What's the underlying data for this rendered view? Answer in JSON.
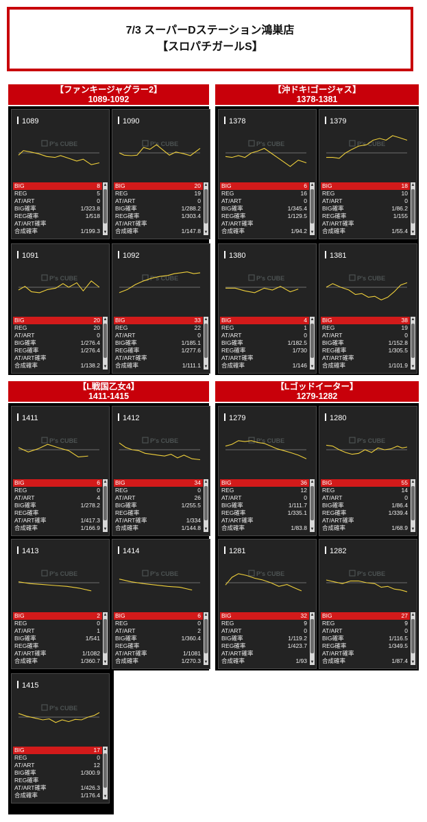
{
  "header": {
    "line1": "7/3 スーパーDステーション鴻巣店",
    "line2": "【スロパチガールS】"
  },
  "labels": {
    "big": "BIG",
    "reg": "REG",
    "atart": "AT/ART",
    "big_rate": "BIG確率",
    "reg_rate": "REG確率",
    "atart_rate": "AT/ART確率",
    "total_rate": "合成確率"
  },
  "logo_text": "P's CUBE",
  "colors": {
    "accent": "#c8000a",
    "graph_line": "#f2d23b",
    "panel_bg": "#232323"
  },
  "groups": [
    {
      "name": "【ファンキージャグラー2】",
      "range": "1089-1092",
      "units": [
        {
          "num": "1089",
          "big": "8",
          "reg": "5",
          "atart": "0",
          "big_rate": "1/323.8",
          "reg_rate": "1/518",
          "atart_rate": "",
          "total_rate": "1/199.3",
          "graph": [
            [
              0,
              0.55
            ],
            [
              0.06,
              0.45
            ],
            [
              0.15,
              0.48
            ],
            [
              0.25,
              0.52
            ],
            [
              0.35,
              0.58
            ],
            [
              0.45,
              0.6
            ],
            [
              0.52,
              0.56
            ],
            [
              0.62,
              0.62
            ],
            [
              0.72,
              0.68
            ],
            [
              0.8,
              0.64
            ],
            [
              0.9,
              0.76
            ],
            [
              1,
              0.72
            ]
          ]
        },
        {
          "num": "1090",
          "big": "20",
          "reg": "19",
          "atart": "0",
          "big_rate": "1/288.2",
          "reg_rate": "1/303.4",
          "atart_rate": "",
          "total_rate": "1/147.8",
          "graph": [
            [
              0,
              0.5
            ],
            [
              0.06,
              0.55
            ],
            [
              0.15,
              0.56
            ],
            [
              0.22,
              0.55
            ],
            [
              0.3,
              0.38
            ],
            [
              0.38,
              0.42
            ],
            [
              0.46,
              0.32
            ],
            [
              0.55,
              0.45
            ],
            [
              0.62,
              0.55
            ],
            [
              0.7,
              0.48
            ],
            [
              0.8,
              0.52
            ],
            [
              0.88,
              0.56
            ],
            [
              1,
              0.4
            ]
          ]
        },
        {
          "num": "1091",
          "big": "20",
          "reg": "20",
          "atart": "0",
          "big_rate": "1/276.4",
          "reg_rate": "1/276.4",
          "atart_rate": "",
          "total_rate": "1/138.2",
          "graph": [
            [
              0,
              0.56
            ],
            [
              0.08,
              0.48
            ],
            [
              0.16,
              0.6
            ],
            [
              0.26,
              0.62
            ],
            [
              0.36,
              0.55
            ],
            [
              0.46,
              0.52
            ],
            [
              0.55,
              0.42
            ],
            [
              0.62,
              0.5
            ],
            [
              0.72,
              0.4
            ],
            [
              0.8,
              0.58
            ],
            [
              0.9,
              0.36
            ],
            [
              1,
              0.5
            ]
          ]
        },
        {
          "num": "1092",
          "big": "33",
          "reg": "22",
          "atart": "0",
          "big_rate": "1/185.1",
          "reg_rate": "1/277.6",
          "atart_rate": "",
          "total_rate": "1/111.1",
          "graph": [
            [
              0,
              0.62
            ],
            [
              0.1,
              0.55
            ],
            [
              0.2,
              0.44
            ],
            [
              0.3,
              0.36
            ],
            [
              0.4,
              0.3
            ],
            [
              0.5,
              0.26
            ],
            [
              0.6,
              0.24
            ],
            [
              0.68,
              0.2
            ],
            [
              0.76,
              0.18
            ],
            [
              0.84,
              0.16
            ],
            [
              0.92,
              0.2
            ],
            [
              1,
              0.18
            ]
          ]
        }
      ]
    },
    {
      "name": "【沖ドキ!ゴージャス】",
      "range": "1378-1381",
      "units": [
        {
          "num": "1378",
          "big": "6",
          "reg": "16",
          "atart": "0",
          "big_rate": "1/345.4",
          "reg_rate": "1/129.5",
          "atart_rate": "",
          "total_rate": "1/94.2",
          "graph": [
            [
              0,
              0.58
            ],
            [
              0.08,
              0.6
            ],
            [
              0.16,
              0.56
            ],
            [
              0.24,
              0.6
            ],
            [
              0.32,
              0.5
            ],
            [
              0.4,
              0.46
            ],
            [
              0.48,
              0.4
            ],
            [
              0.56,
              0.5
            ],
            [
              0.64,
              0.6
            ],
            [
              0.72,
              0.7
            ],
            [
              0.8,
              0.8
            ],
            [
              0.9,
              0.66
            ],
            [
              1,
              0.72
            ]
          ]
        },
        {
          "num": "1379",
          "big": "18",
          "reg": "10",
          "atart": "0",
          "big_rate": "1/86.2",
          "reg_rate": "1/155",
          "atart_rate": "",
          "total_rate": "1/55.4",
          "graph": [
            [
              0,
              0.6
            ],
            [
              0.08,
              0.6
            ],
            [
              0.16,
              0.62
            ],
            [
              0.24,
              0.5
            ],
            [
              0.32,
              0.42
            ],
            [
              0.4,
              0.35
            ],
            [
              0.5,
              0.32
            ],
            [
              0.58,
              0.22
            ],
            [
              0.66,
              0.18
            ],
            [
              0.74,
              0.22
            ],
            [
              0.82,
              0.12
            ],
            [
              0.9,
              0.16
            ],
            [
              1,
              0.22
            ]
          ]
        },
        {
          "num": "1380",
          "big": "4",
          "reg": "1",
          "atart": "0",
          "big_rate": "1/182.5",
          "reg_rate": "1/730",
          "atart_rate": "",
          "total_rate": "1/146",
          "graph": [
            [
              0,
              0.52
            ],
            [
              0.12,
              0.52
            ],
            [
              0.24,
              0.58
            ],
            [
              0.36,
              0.62
            ],
            [
              0.48,
              0.52
            ],
            [
              0.58,
              0.56
            ],
            [
              0.68,
              0.48
            ],
            [
              0.8,
              0.6
            ],
            [
              0.9,
              0.54
            ]
          ]
        },
        {
          "num": "1381",
          "big": "38",
          "reg": "19",
          "atart": "0",
          "big_rate": "1/152.8",
          "reg_rate": "1/305.5",
          "atart_rate": "",
          "total_rate": "1/101.9",
          "graph": [
            [
              0,
              0.5
            ],
            [
              0.08,
              0.42
            ],
            [
              0.18,
              0.5
            ],
            [
              0.28,
              0.56
            ],
            [
              0.36,
              0.66
            ],
            [
              0.44,
              0.64
            ],
            [
              0.52,
              0.72
            ],
            [
              0.6,
              0.7
            ],
            [
              0.68,
              0.78
            ],
            [
              0.76,
              0.72
            ],
            [
              0.84,
              0.6
            ],
            [
              0.92,
              0.45
            ],
            [
              1,
              0.4
            ]
          ]
        }
      ]
    },
    {
      "name": "【L戦国乙女4】",
      "range": "1411-1415",
      "units": [
        {
          "num": "1411",
          "big": "6",
          "reg": "0",
          "atart": "4",
          "big_rate": "1/278.2",
          "reg_rate": "",
          "atart_rate": "1/417.3",
          "total_rate": "1/166.9",
          "graph": [
            [
              0,
              0.45
            ],
            [
              0.12,
              0.55
            ],
            [
              0.24,
              0.48
            ],
            [
              0.36,
              0.38
            ],
            [
              0.5,
              0.46
            ],
            [
              0.62,
              0.52
            ],
            [
              0.74,
              0.66
            ],
            [
              0.86,
              0.64
            ]
          ]
        },
        {
          "num": "1412",
          "big": "34",
          "reg": "0",
          "atart": "26",
          "big_rate": "1/255.5",
          "reg_rate": "",
          "atart_rate": "1/334",
          "total_rate": "1/144.8",
          "graph": [
            [
              0,
              0.35
            ],
            [
              0.08,
              0.45
            ],
            [
              0.16,
              0.5
            ],
            [
              0.24,
              0.52
            ],
            [
              0.32,
              0.58
            ],
            [
              0.4,
              0.6
            ],
            [
              0.48,
              0.62
            ],
            [
              0.56,
              0.64
            ],
            [
              0.64,
              0.6
            ],
            [
              0.72,
              0.68
            ],
            [
              0.8,
              0.62
            ],
            [
              0.9,
              0.7
            ],
            [
              1,
              0.72
            ]
          ]
        },
        {
          "num": "1413",
          "big": "2",
          "reg": "0",
          "atart": "1",
          "big_rate": "1/541",
          "reg_rate": "",
          "atart_rate": "1/1082",
          "total_rate": "1/360.7",
          "graph": [
            [
              0,
              0.48
            ],
            [
              0.15,
              0.52
            ],
            [
              0.3,
              0.54
            ],
            [
              0.45,
              0.56
            ],
            [
              0.6,
              0.58
            ],
            [
              0.75,
              0.62
            ],
            [
              0.9,
              0.68
            ]
          ]
        },
        {
          "num": "1414",
          "big": "6",
          "reg": "0",
          "atart": "2",
          "big_rate": "1/360.4",
          "reg_rate": "",
          "atart_rate": "1/1081",
          "total_rate": "1/270.3",
          "graph": [
            [
              0,
              0.42
            ],
            [
              0.15,
              0.48
            ],
            [
              0.3,
              0.52
            ],
            [
              0.45,
              0.55
            ],
            [
              0.6,
              0.58
            ],
            [
              0.75,
              0.6
            ],
            [
              0.9,
              0.66
            ]
          ]
        },
        {
          "num": "1415",
          "big": "17",
          "reg": "0",
          "atart": "12",
          "big_rate": "1/300.9",
          "reg_rate": "",
          "atart_rate": "1/426.3",
          "total_rate": "1/176.4",
          "graph": [
            [
              0,
              0.42
            ],
            [
              0.1,
              0.48
            ],
            [
              0.2,
              0.52
            ],
            [
              0.3,
              0.56
            ],
            [
              0.38,
              0.54
            ],
            [
              0.46,
              0.62
            ],
            [
              0.54,
              0.56
            ],
            [
              0.62,
              0.6
            ],
            [
              0.7,
              0.55
            ],
            [
              0.78,
              0.56
            ],
            [
              0.86,
              0.5
            ],
            [
              0.94,
              0.46
            ],
            [
              1,
              0.4
            ]
          ]
        }
      ]
    },
    {
      "name": "【Lゴッドイーター】",
      "range": "1279-1282",
      "units": [
        {
          "num": "1279",
          "big": "36",
          "reg": "12",
          "atart": "0",
          "big_rate": "1/111.7",
          "reg_rate": "1/335.1",
          "atart_rate": "",
          "total_rate": "1/83.8",
          "graph": [
            [
              0,
              0.42
            ],
            [
              0.08,
              0.38
            ],
            [
              0.16,
              0.3
            ],
            [
              0.24,
              0.32
            ],
            [
              0.32,
              0.3
            ],
            [
              0.4,
              0.34
            ],
            [
              0.48,
              0.36
            ],
            [
              0.56,
              0.42
            ],
            [
              0.64,
              0.48
            ],
            [
              0.72,
              0.52
            ],
            [
              0.8,
              0.56
            ],
            [
              0.9,
              0.62
            ],
            [
              1,
              0.7
            ]
          ]
        },
        {
          "num": "1280",
          "big": "55",
          "reg": "14",
          "atart": "0",
          "big_rate": "1/86.4",
          "reg_rate": "1/339.4",
          "atart_rate": "",
          "total_rate": "1/68.9",
          "graph": [
            [
              0,
              0.4
            ],
            [
              0.08,
              0.42
            ],
            [
              0.16,
              0.5
            ],
            [
              0.24,
              0.56
            ],
            [
              0.32,
              0.6
            ],
            [
              0.4,
              0.58
            ],
            [
              0.48,
              0.5
            ],
            [
              0.56,
              0.56
            ],
            [
              0.64,
              0.46
            ],
            [
              0.72,
              0.5
            ],
            [
              0.8,
              0.48
            ],
            [
              0.88,
              0.42
            ],
            [
              0.94,
              0.46
            ],
            [
              1,
              0.44
            ]
          ]
        },
        {
          "num": "1281",
          "big": "32",
          "reg": "9",
          "atart": "0",
          "big_rate": "1/119.2",
          "reg_rate": "1/423.7",
          "atart_rate": "",
          "total_rate": "1/93",
          "graph": [
            [
              0,
              0.55
            ],
            [
              0.08,
              0.38
            ],
            [
              0.16,
              0.3
            ],
            [
              0.26,
              0.34
            ],
            [
              0.36,
              0.4
            ],
            [
              0.46,
              0.44
            ],
            [
              0.56,
              0.5
            ],
            [
              0.66,
              0.58
            ],
            [
              0.76,
              0.54
            ],
            [
              0.86,
              0.62
            ],
            [
              0.94,
              0.68
            ]
          ]
        },
        {
          "num": "1282",
          "big": "27",
          "reg": "9",
          "atart": "0",
          "big_rate": "1/116.5",
          "reg_rate": "1/349.5",
          "atart_rate": "",
          "total_rate": "1/87.4",
          "graph": [
            [
              0,
              0.44
            ],
            [
              0.1,
              0.48
            ],
            [
              0.2,
              0.52
            ],
            [
              0.3,
              0.46
            ],
            [
              0.4,
              0.46
            ],
            [
              0.5,
              0.5
            ],
            [
              0.6,
              0.52
            ],
            [
              0.68,
              0.6
            ],
            [
              0.76,
              0.58
            ],
            [
              0.84,
              0.64
            ],
            [
              0.92,
              0.66
            ],
            [
              1,
              0.7
            ]
          ]
        }
      ]
    }
  ]
}
